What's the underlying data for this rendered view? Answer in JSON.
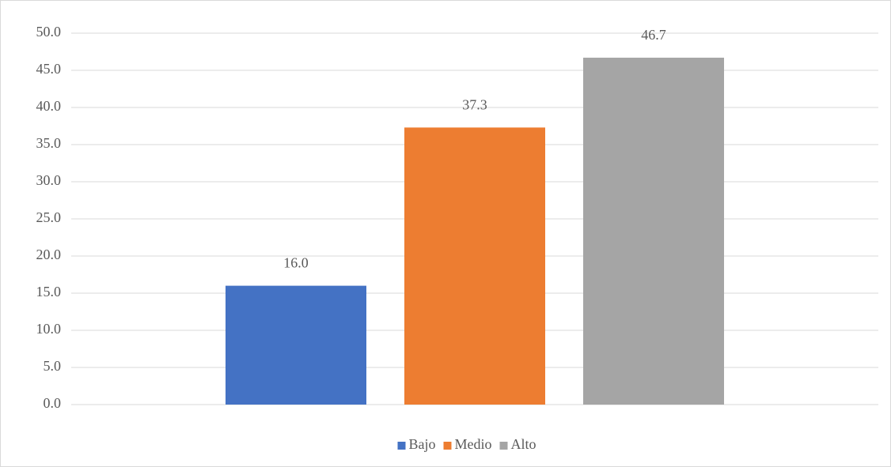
{
  "chart_data": {
    "type": "bar",
    "categories": [
      null
    ],
    "series": [
      {
        "name": "Bajo",
        "color": "#4472c4",
        "values": [
          16.0
        ],
        "value_labels": [
          "16.0"
        ]
      },
      {
        "name": "Medio",
        "color": "#ed7d31",
        "values": [
          37.3
        ],
        "value_labels": [
          "37.3"
        ]
      },
      {
        "name": "Alto",
        "color": "#a5a5a5",
        "values": [
          46.7
        ],
        "value_labels": [
          "46.7"
        ]
      }
    ],
    "ylim": [
      0,
      50
    ],
    "yticks": [
      {
        "value": 0,
        "label": "0.0"
      },
      {
        "value": 5,
        "label": "5.0"
      },
      {
        "value": 10,
        "label": "10.0"
      },
      {
        "value": 15,
        "label": "15.0"
      },
      {
        "value": 20,
        "label": "20.0"
      },
      {
        "value": 25,
        "label": "25.0"
      },
      {
        "value": 30,
        "label": "30.0"
      },
      {
        "value": 35,
        "label": "35.0"
      },
      {
        "value": 40,
        "label": "40.0"
      },
      {
        "value": 45,
        "label": "45.0"
      },
      {
        "value": 50,
        "label": "50.0"
      }
    ],
    "grid": true,
    "legend": "bottom"
  }
}
